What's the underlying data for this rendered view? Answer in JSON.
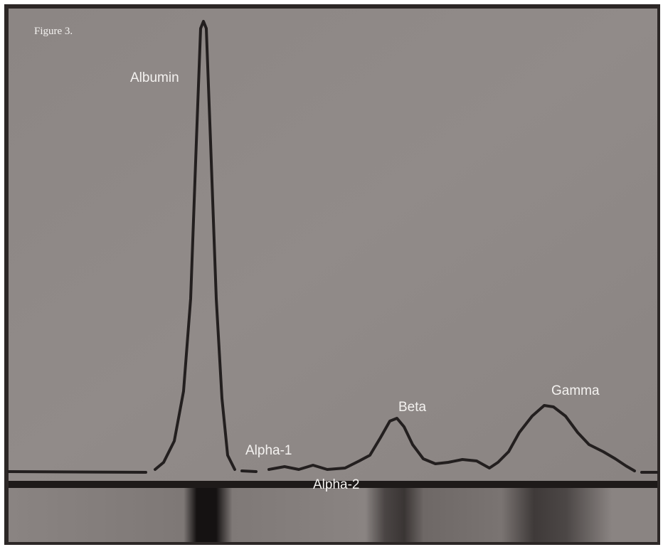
{
  "figure_label": "Figure 3.",
  "peaks": [
    {
      "label": "Albumin"
    },
    {
      "label": "Alpha-1"
    },
    {
      "label": "Alpha-2"
    },
    {
      "label": "Beta"
    },
    {
      "label": "Gamma"
    }
  ]
}
